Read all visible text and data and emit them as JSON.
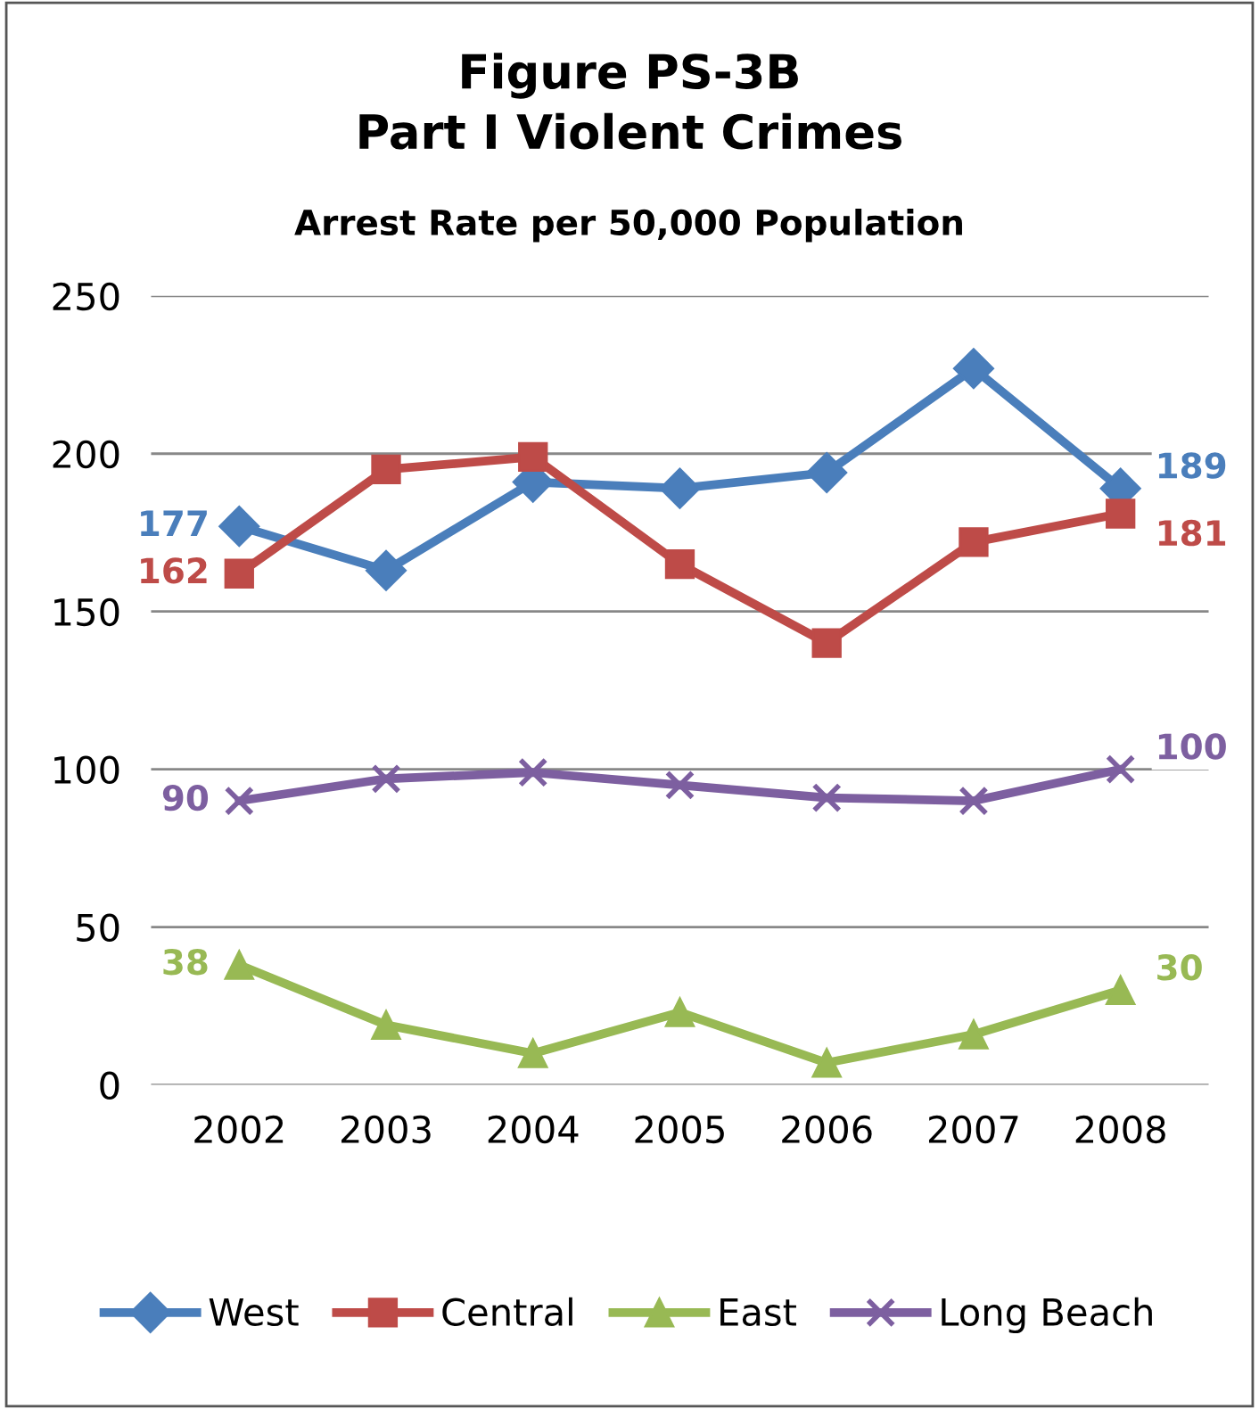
{
  "chart_data": {
    "type": "line",
    "title": "Figure PS-3B\nPart I Violent Crimes",
    "subtitle": "Arrest Rate per 50,000 Population",
    "categories": [
      "2002",
      "2003",
      "2004",
      "2005",
      "2006",
      "2007",
      "2008"
    ],
    "series": [
      {
        "name": "West",
        "color": "#4a7ebb",
        "marker": "diamond",
        "values": [
          177,
          163,
          191,
          189,
          194,
          227,
          189
        ],
        "value_labels": [
          "177",
          null,
          null,
          null,
          null,
          null,
          "189"
        ]
      },
      {
        "name": "Central",
        "color": "#be4b48",
        "marker": "square",
        "values": [
          162,
          195,
          199,
          165,
          140,
          172,
          181
        ],
        "value_labels": [
          "162",
          null,
          null,
          null,
          null,
          null,
          "181"
        ]
      },
      {
        "name": "East",
        "color": "#98b954",
        "marker": "triangle",
        "values": [
          38,
          19,
          10,
          23,
          7,
          16,
          30
        ],
        "value_labels": [
          "38",
          null,
          null,
          null,
          null,
          null,
          "30"
        ]
      },
      {
        "name": "Long Beach",
        "color": "#7d5fa0",
        "marker": "cross",
        "values": [
          90,
          97,
          99,
          95,
          91,
          90,
          100
        ],
        "value_labels": [
          "90",
          null,
          null,
          null,
          null,
          null,
          "100"
        ]
      }
    ],
    "ylim": [
      0,
      250
    ],
    "yticks": [
      0,
      50,
      100,
      150,
      200,
      250
    ],
    "grid": "y",
    "legend": "bottom",
    "line_style": "solid"
  }
}
